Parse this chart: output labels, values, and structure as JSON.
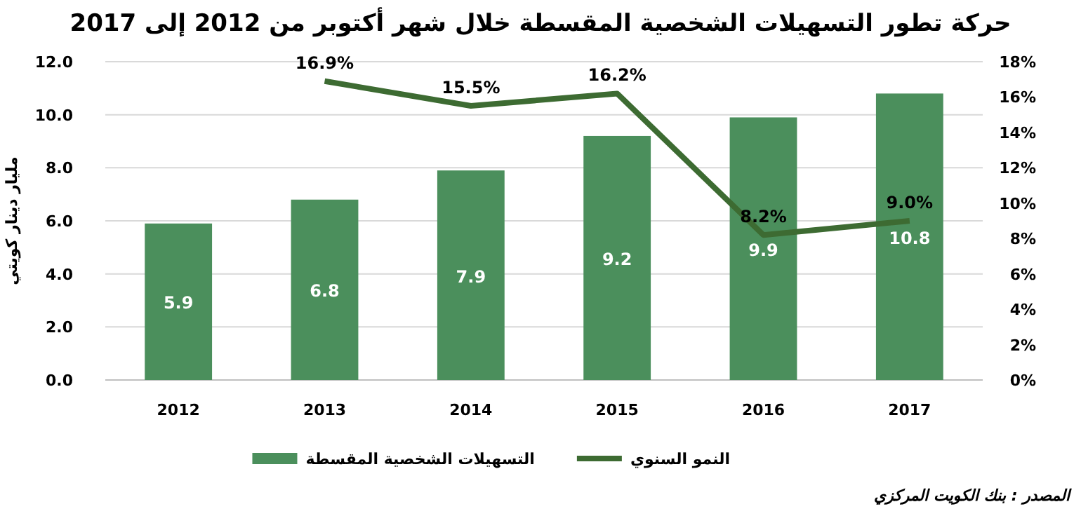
{
  "chart_data": {
    "type": "bar",
    "title": "حركة تطور التسهيلات الشخصية المقسطة خلال شهر أكتوبر من 2012 إلى 2017",
    "ylabel": "مليار دينار كويتي",
    "categories": [
      "2012",
      "2013",
      "2014",
      "2015",
      "2016",
      "2017"
    ],
    "series": [
      {
        "name": "التسهيلات الشخصية المقسطة",
        "color": "#4b8f5c",
        "values": [
          5.9,
          6.8,
          7.9,
          9.2,
          9.9,
          10.8
        ]
      },
      {
        "name": "النمو السنوي",
        "type": "line",
        "axis": "y2",
        "color": "#3d6b32",
        "values": [
          null,
          16.9,
          15.5,
          16.2,
          8.2,
          9.0
        ],
        "value_labels": [
          null,
          "16.9%",
          "15.5%",
          "16.2%",
          "8.2%",
          "9.0%"
        ]
      }
    ],
    "data_labels": true,
    "ylim": [
      0,
      12
    ],
    "yticks": [
      {
        "value": 0,
        "label": "0.0"
      },
      {
        "value": 2,
        "label": "2.0"
      },
      {
        "value": 4,
        "label": "4.0"
      },
      {
        "value": 6,
        "label": "6.0"
      },
      {
        "value": 8,
        "label": "8.0"
      },
      {
        "value": 10,
        "label": "10.0"
      },
      {
        "value": 12,
        "label": "12.0"
      }
    ],
    "y2lim": [
      0,
      18
    ],
    "y2ticks": [
      {
        "value": 0,
        "label": "0%"
      },
      {
        "value": 2,
        "label": "2%"
      },
      {
        "value": 4,
        "label": "4%"
      },
      {
        "value": 6,
        "label": "6%"
      },
      {
        "value": 8,
        "label": "8%"
      },
      {
        "value": 10,
        "label": "10%"
      },
      {
        "value": 12,
        "label": "12%"
      },
      {
        "value": 14,
        "label": "14%"
      },
      {
        "value": 16,
        "label": "16%"
      },
      {
        "value": 18,
        "label": "18%"
      }
    ],
    "grid": "y",
    "legend": "bottom",
    "annotations": [
      "المصدر : بنك الكويت المركزي"
    ]
  }
}
